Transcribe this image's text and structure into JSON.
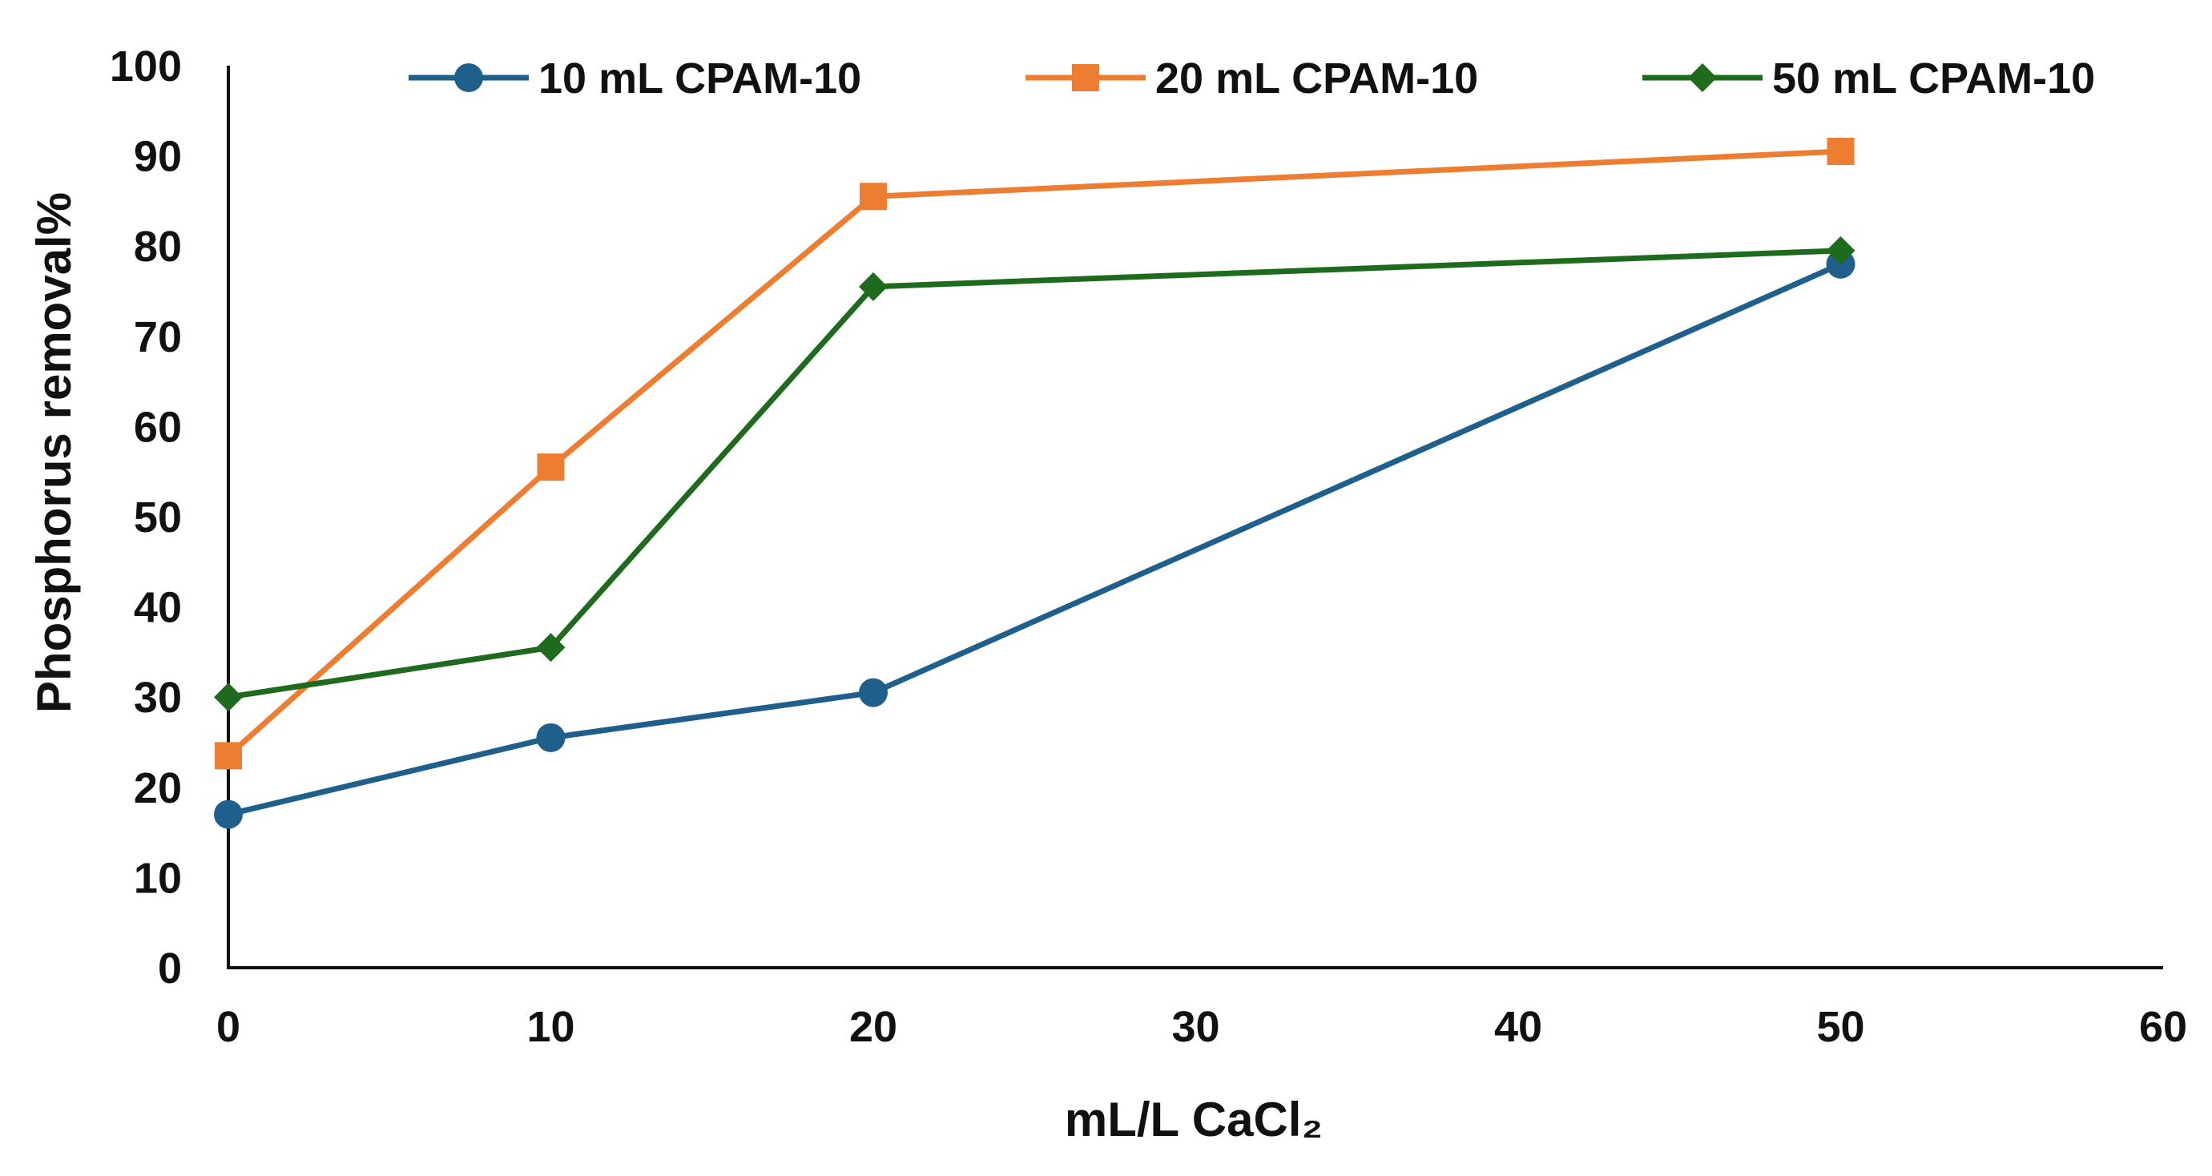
{
  "chart_data": {
    "type": "line",
    "title": "",
    "xlabel": "mL/L CaCl₂",
    "ylabel": "Phosphorus removal%",
    "xlim": [
      0,
      60
    ],
    "ylim": [
      0,
      100
    ],
    "xticks": [
      0,
      10,
      20,
      30,
      40,
      50,
      60
    ],
    "yticks": [
      0,
      10,
      20,
      30,
      40,
      50,
      60,
      70,
      80,
      90,
      100
    ],
    "grid": false,
    "legend_position": "top",
    "series": [
      {
        "name": "10 mL CPAM-10",
        "color": "#1f5f8b",
        "marker": "circle",
        "x": [
          0,
          10,
          20,
          50
        ],
        "y": [
          17,
          25.5,
          30.5,
          78
        ]
      },
      {
        "name": "20 mL CPAM-10",
        "color": "#ed7d31",
        "marker": "square",
        "x": [
          0,
          10,
          20,
          50
        ],
        "y": [
          23.5,
          55.5,
          85.5,
          90.5
        ]
      },
      {
        "name": "50 mL CPAM-10",
        "color": "#1e6b1e",
        "marker": "diamond",
        "x": [
          0,
          10,
          20,
          50
        ],
        "y": [
          30,
          35.5,
          75.5,
          79.5
        ]
      }
    ]
  }
}
